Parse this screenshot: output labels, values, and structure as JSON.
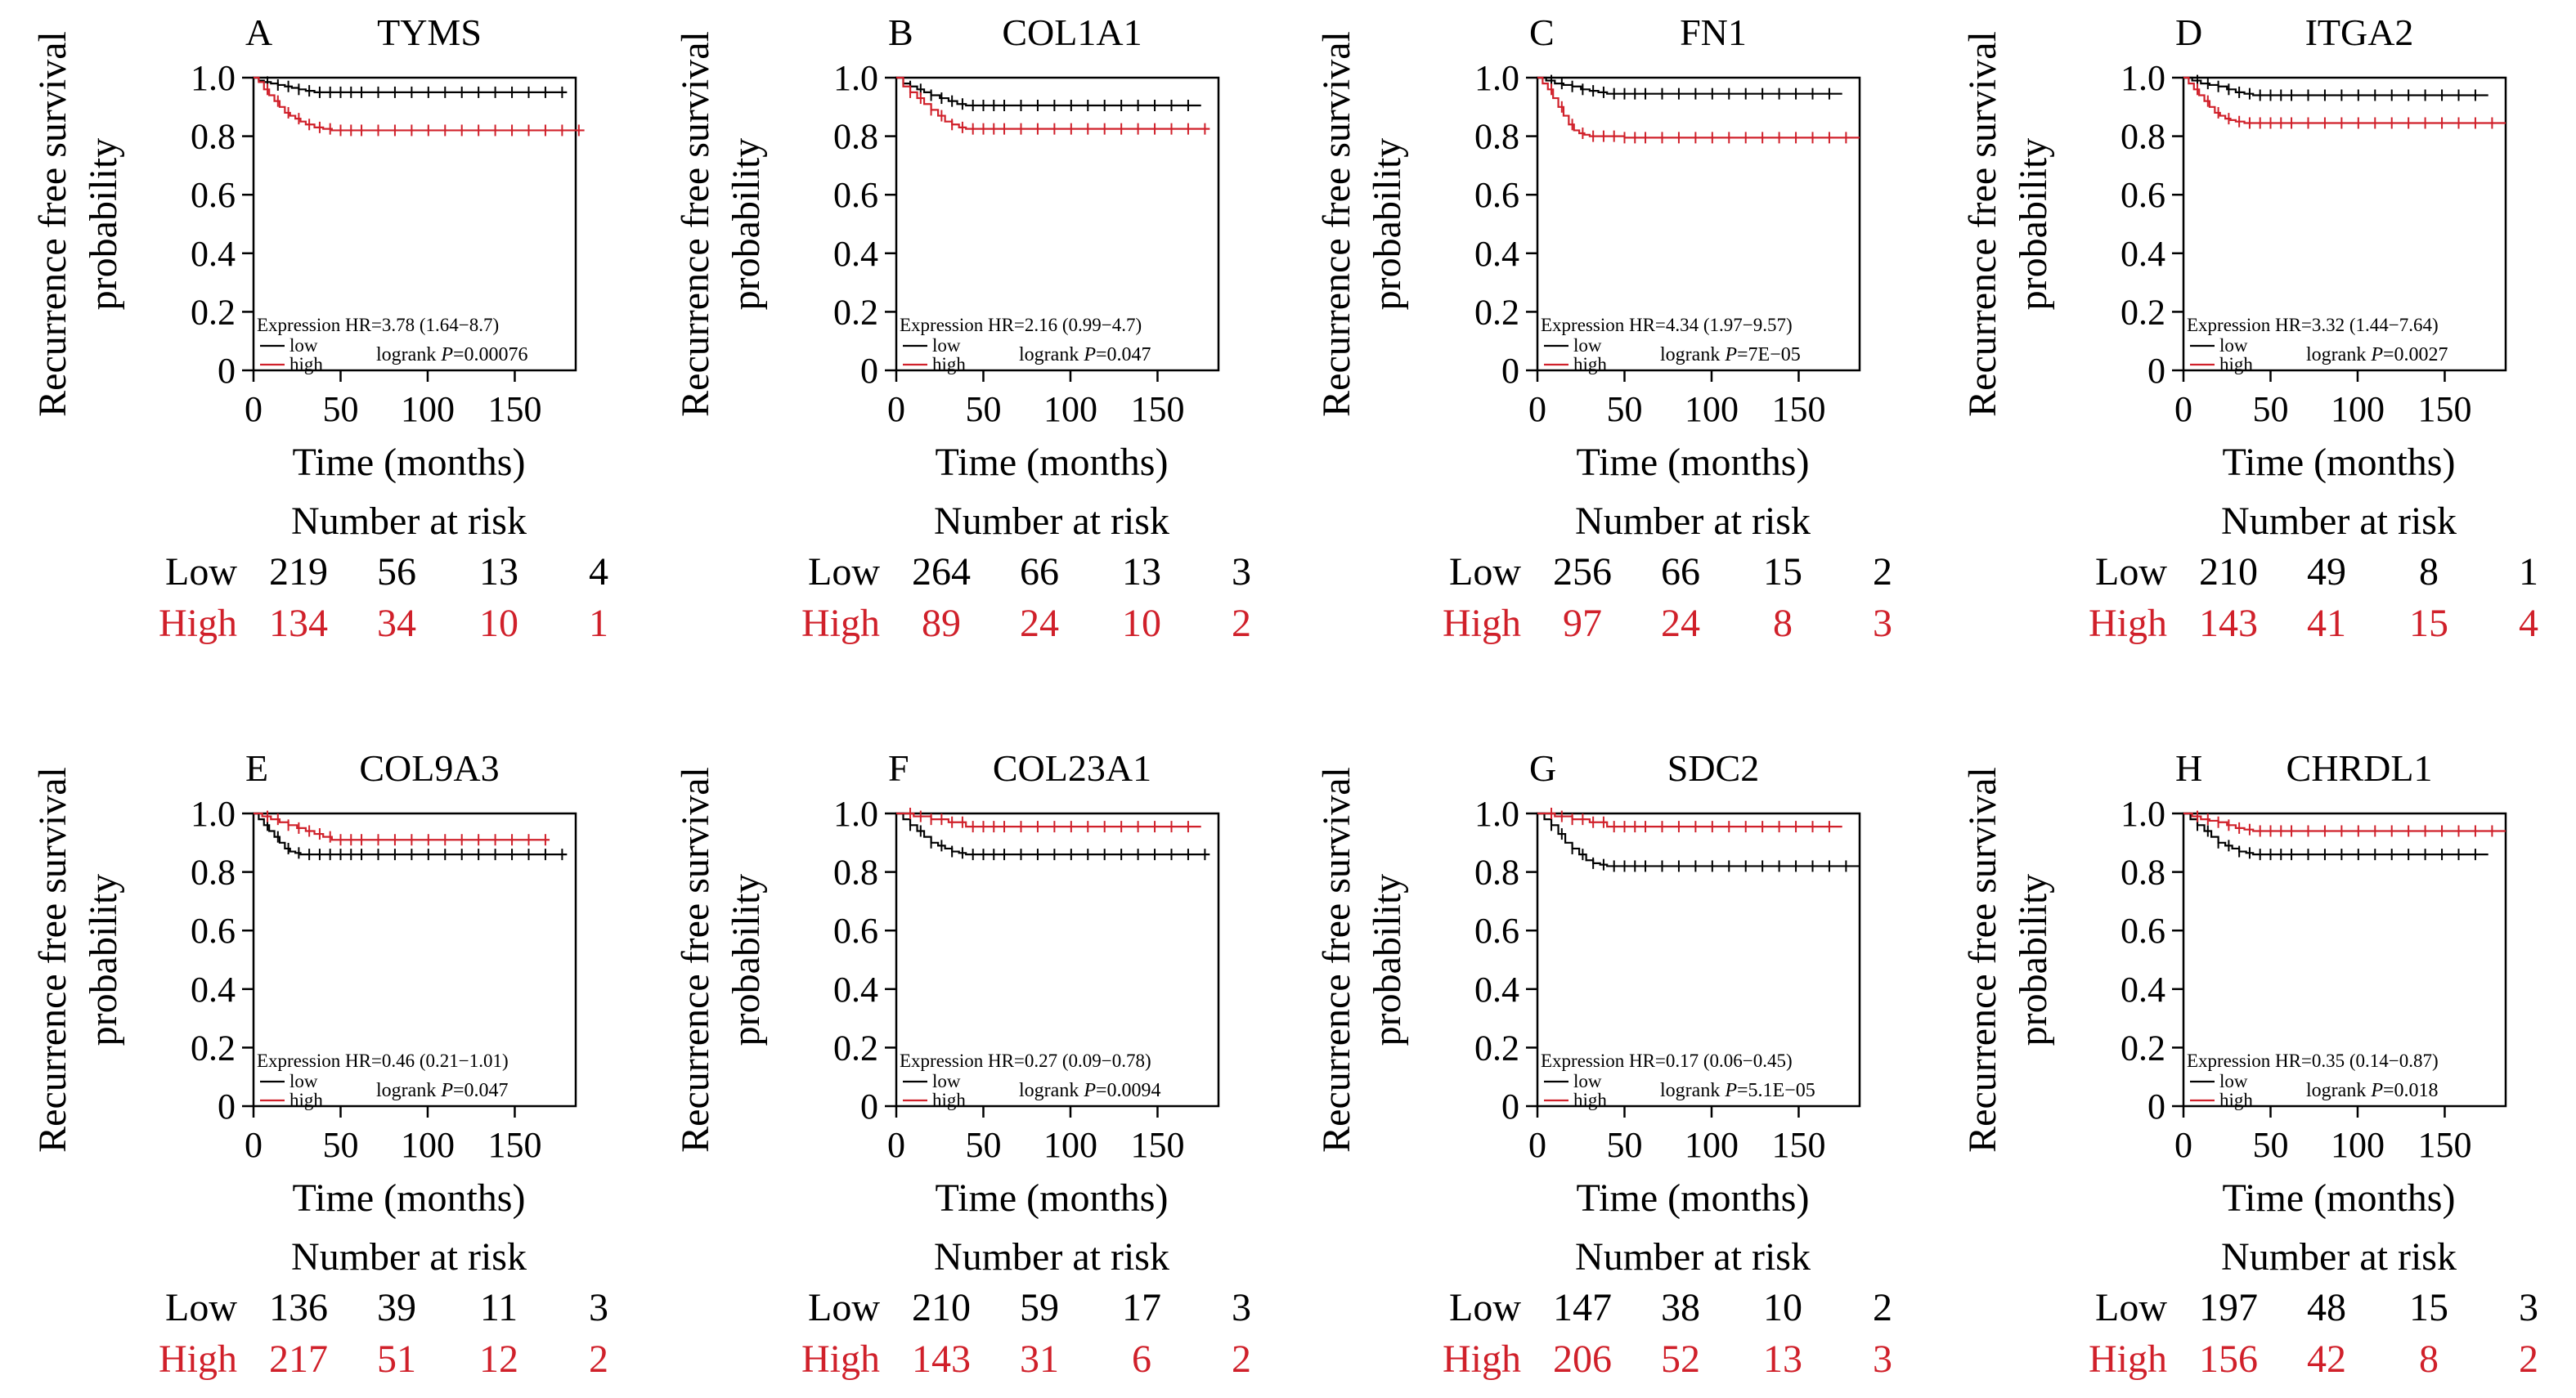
{
  "colors": {
    "low": "#000000",
    "high": "#d0202a"
  },
  "labels": {
    "ylabel_line1": "Recurrence free survival",
    "ylabel_line2": "probability",
    "xlabel": "Time (months)",
    "risk_title": "Number at risk",
    "risk_low": "Low",
    "risk_high": "High",
    "legend_low": "low",
    "legend_high": "high",
    "expression_prefix": "Expression HR=",
    "logrank_prefix": "logrank ",
    "p_symbol": "P",
    "p_equals": "="
  },
  "chart_data": [
    {
      "type": "line",
      "letter": "A",
      "gene": "TYMS",
      "xlim": [
        0,
        185
      ],
      "ylim": [
        0,
        1.0
      ],
      "xticks": [
        0,
        50,
        100,
        150
      ],
      "yticks": [
        0,
        0.2,
        0.4,
        0.6,
        0.8,
        1.0
      ],
      "hr": "3.78 (1.64−8.7)",
      "p": "0.00076",
      "series": [
        {
          "name": "low",
          "x": [
            0,
            3,
            6,
            10,
            14,
            18,
            22,
            26,
            30,
            35,
            180
          ],
          "y": [
            1.0,
            0.99,
            0.985,
            0.98,
            0.975,
            0.97,
            0.965,
            0.96,
            0.955,
            0.95,
            0.95
          ]
        },
        {
          "name": "high",
          "x": [
            0,
            3,
            6,
            9,
            12,
            15,
            18,
            21,
            24,
            27,
            30,
            35,
            40,
            45,
            190
          ],
          "y": [
            1.0,
            0.985,
            0.96,
            0.94,
            0.92,
            0.9,
            0.88,
            0.87,
            0.86,
            0.85,
            0.84,
            0.83,
            0.825,
            0.82,
            0.82
          ]
        }
      ],
      "risk": {
        "low": [
          "219",
          "56",
          "13",
          "4"
        ],
        "high": [
          "134",
          "34",
          "10",
          "1"
        ]
      }
    },
    {
      "type": "line",
      "letter": "B",
      "gene": "COL1A1",
      "xlim": [
        0,
        185
      ],
      "ylim": [
        0,
        1.0
      ],
      "xticks": [
        0,
        50,
        100,
        150
      ],
      "yticks": [
        0,
        0.2,
        0.4,
        0.6,
        0.8,
        1.0
      ],
      "hr": "2.16 (0.99−4.7)",
      "p": "0.047",
      "series": [
        {
          "name": "low",
          "x": [
            0,
            4,
            8,
            12,
            16,
            20,
            25,
            30,
            35,
            40,
            175
          ],
          "y": [
            1.0,
            0.98,
            0.97,
            0.96,
            0.95,
            0.94,
            0.93,
            0.92,
            0.91,
            0.905,
            0.905
          ]
        },
        {
          "name": "high",
          "x": [
            0,
            4,
            8,
            12,
            16,
            20,
            24,
            28,
            32,
            36,
            40,
            180
          ],
          "y": [
            1.0,
            0.97,
            0.95,
            0.93,
            0.91,
            0.89,
            0.87,
            0.85,
            0.84,
            0.83,
            0.825,
            0.825
          ]
        }
      ],
      "risk": {
        "low": [
          "264",
          "66",
          "13",
          "3"
        ],
        "high": [
          "89",
          "24",
          "10",
          "2"
        ]
      }
    },
    {
      "type": "line",
      "letter": "C",
      "gene": "FN1",
      "xlim": [
        0,
        185
      ],
      "ylim": [
        0,
        1.0
      ],
      "xticks": [
        0,
        50,
        100,
        150
      ],
      "yticks": [
        0,
        0.2,
        0.4,
        0.6,
        0.8,
        1.0
      ],
      "hr": "4.34 (1.97−9.57)",
      "p": "7E−05",
      "series": [
        {
          "name": "low",
          "x": [
            0,
            5,
            10,
            15,
            20,
            25,
            30,
            35,
            40,
            175
          ],
          "y": [
            1.0,
            0.99,
            0.98,
            0.975,
            0.97,
            0.96,
            0.955,
            0.95,
            0.945,
            0.945
          ]
        },
        {
          "name": "high",
          "x": [
            0,
            3,
            6,
            9,
            12,
            15,
            18,
            21,
            24,
            27,
            30,
            50,
            185
          ],
          "y": [
            1.0,
            0.98,
            0.96,
            0.93,
            0.9,
            0.87,
            0.84,
            0.82,
            0.81,
            0.805,
            0.8,
            0.795,
            0.795
          ]
        }
      ],
      "risk": {
        "low": [
          "256",
          "66",
          "15",
          "2"
        ],
        "high": [
          "97",
          "24",
          "8",
          "3"
        ]
      }
    },
    {
      "type": "line",
      "letter": "D",
      "gene": "ITGA2",
      "xlim": [
        0,
        185
      ],
      "ylim": [
        0,
        1.0
      ],
      "xticks": [
        0,
        50,
        100,
        150
      ],
      "yticks": [
        0,
        0.2,
        0.4,
        0.6,
        0.8,
        1.0
      ],
      "hr": "3.32 (1.44−7.64)",
      "p": "0.0027",
      "series": [
        {
          "name": "low",
          "x": [
            0,
            5,
            10,
            15,
            20,
            25,
            30,
            35,
            40,
            175
          ],
          "y": [
            1.0,
            0.99,
            0.98,
            0.975,
            0.97,
            0.96,
            0.95,
            0.945,
            0.94,
            0.94
          ]
        },
        {
          "name": "high",
          "x": [
            0,
            3,
            6,
            9,
            12,
            15,
            18,
            21,
            24,
            27,
            30,
            35,
            185
          ],
          "y": [
            1.0,
            0.98,
            0.96,
            0.94,
            0.92,
            0.9,
            0.88,
            0.87,
            0.86,
            0.855,
            0.85,
            0.845,
            0.845
          ]
        }
      ],
      "risk": {
        "low": [
          "210",
          "49",
          "8",
          "1"
        ],
        "high": [
          "143",
          "41",
          "15",
          "4"
        ]
      }
    },
    {
      "type": "line",
      "letter": "E",
      "gene": "COL9A3",
      "xlim": [
        0,
        185
      ],
      "ylim": [
        0,
        1.0
      ],
      "xticks": [
        0,
        50,
        100,
        150
      ],
      "yticks": [
        0,
        0.2,
        0.4,
        0.6,
        0.8,
        1.0
      ],
      "hr": "0.46 (0.21−1.01)",
      "p": "0.047",
      "series": [
        {
          "name": "low",
          "x": [
            0,
            3,
            6,
            9,
            12,
            15,
            18,
            21,
            24,
            27,
            180
          ],
          "y": [
            1.0,
            0.98,
            0.96,
            0.94,
            0.92,
            0.9,
            0.88,
            0.87,
            0.865,
            0.86,
            0.86
          ]
        },
        {
          "name": "high",
          "x": [
            0,
            5,
            10,
            15,
            20,
            25,
            30,
            35,
            40,
            45,
            170
          ],
          "y": [
            1.0,
            0.99,
            0.98,
            0.97,
            0.96,
            0.95,
            0.94,
            0.93,
            0.92,
            0.91,
            0.91
          ]
        }
      ],
      "risk": {
        "low": [
          "136",
          "39",
          "11",
          "3"
        ],
        "high": [
          "217",
          "51",
          "12",
          "2"
        ]
      }
    },
    {
      "type": "line",
      "letter": "F",
      "gene": "COL23A1",
      "xlim": [
        0,
        185
      ],
      "ylim": [
        0,
        1.0
      ],
      "xticks": [
        0,
        50,
        100,
        150
      ],
      "yticks": [
        0,
        0.2,
        0.4,
        0.6,
        0.8,
        1.0
      ],
      "hr": "0.27 (0.09−0.78)",
      "p": "0.0094",
      "series": [
        {
          "name": "low",
          "x": [
            0,
            4,
            8,
            12,
            16,
            20,
            24,
            28,
            32,
            36,
            40,
            180
          ],
          "y": [
            1.0,
            0.98,
            0.96,
            0.94,
            0.92,
            0.9,
            0.89,
            0.88,
            0.87,
            0.865,
            0.86,
            0.86
          ]
        },
        {
          "name": "high",
          "x": [
            0,
            10,
            20,
            30,
            40,
            175
          ],
          "y": [
            1.0,
            0.99,
            0.98,
            0.97,
            0.955,
            0.955
          ]
        }
      ],
      "risk": {
        "low": [
          "210",
          "59",
          "17",
          "3"
        ],
        "high": [
          "143",
          "31",
          "6",
          "2"
        ]
      }
    },
    {
      "type": "line",
      "letter": "G",
      "gene": "SDC2",
      "xlim": [
        0,
        185
      ],
      "ylim": [
        0,
        1.0
      ],
      "xticks": [
        0,
        50,
        100,
        150
      ],
      "yticks": [
        0,
        0.2,
        0.4,
        0.6,
        0.8,
        1.0
      ],
      "hr": "0.17 (0.06−0.45)",
      "p": "5.1E−05",
      "series": [
        {
          "name": "low",
          "x": [
            0,
            4,
            8,
            12,
            16,
            20,
            24,
            28,
            32,
            36,
            40,
            185
          ],
          "y": [
            1.0,
            0.98,
            0.96,
            0.93,
            0.9,
            0.88,
            0.86,
            0.84,
            0.83,
            0.825,
            0.82,
            0.82
          ]
        },
        {
          "name": "high",
          "x": [
            0,
            10,
            20,
            30,
            40,
            175
          ],
          "y": [
            1.0,
            0.99,
            0.98,
            0.97,
            0.955,
            0.955
          ]
        }
      ],
      "risk": {
        "low": [
          "147",
          "38",
          "10",
          "2"
        ],
        "high": [
          "206",
          "52",
          "13",
          "3"
        ]
      }
    },
    {
      "type": "line",
      "letter": "H",
      "gene": "CHRDL1",
      "xlim": [
        0,
        185
      ],
      "ylim": [
        0,
        1.0
      ],
      "xticks": [
        0,
        50,
        100,
        150
      ],
      "yticks": [
        0,
        0.2,
        0.4,
        0.6,
        0.8,
        1.0
      ],
      "hr": "0.35 (0.14−0.87)",
      "p": "0.018",
      "series": [
        {
          "name": "low",
          "x": [
            0,
            4,
            8,
            12,
            16,
            20,
            24,
            28,
            32,
            36,
            40,
            175
          ],
          "y": [
            1.0,
            0.98,
            0.96,
            0.94,
            0.92,
            0.9,
            0.89,
            0.88,
            0.87,
            0.865,
            0.86,
            0.86
          ]
        },
        {
          "name": "high",
          "x": [
            0,
            5,
            10,
            15,
            20,
            25,
            30,
            35,
            40,
            185
          ],
          "y": [
            1.0,
            0.99,
            0.98,
            0.975,
            0.97,
            0.96,
            0.95,
            0.945,
            0.94,
            0.94
          ]
        }
      ],
      "risk": {
        "low": [
          "197",
          "48",
          "15",
          "3"
        ],
        "high": [
          "156",
          "42",
          "8",
          "2"
        ]
      }
    }
  ]
}
